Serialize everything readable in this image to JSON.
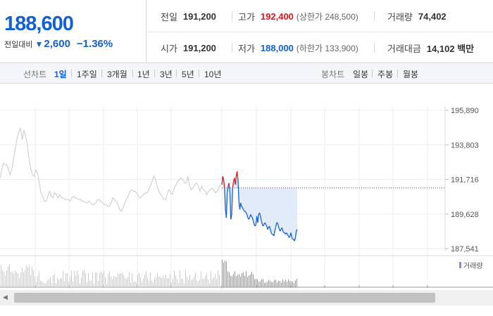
{
  "quote": {
    "price": "188,600",
    "change_label": "전일대비",
    "change_value": "2,600",
    "change_pct": "−1.36%",
    "prev_close_label": "전일",
    "prev_close": "191,200",
    "high_label": "고가",
    "high": "192,400",
    "high_limit": "(상한가 248,500)",
    "volume_label": "거래량",
    "volume": "74,402",
    "open_label": "시가",
    "open": "191,200",
    "low_label": "저가",
    "low": "188,000",
    "low_limit": "(하한가 133,900)",
    "amount_label": "거래대금",
    "amount": "14,102 백만"
  },
  "tabs": {
    "line_label": "선차트",
    "line_items": [
      "1일",
      "1주일",
      "3개월",
      "1년",
      "3년",
      "5년",
      "10년"
    ],
    "active": "1일",
    "candle_label": "봉차트",
    "candle_items": [
      "일봉",
      "주봉",
      "월봉"
    ]
  },
  "colors": {
    "up": "#e0161d",
    "down": "#1160d6",
    "prev_line": "#c9c9c9",
    "fill": "#dde8f8",
    "volume": "#9c86c8"
  },
  "scroll": {
    "left_icon": "scroll-left-arrow-icon"
  },
  "chart_data": {
    "type": "line",
    "title": "",
    "xlabel": "",
    "ylabel": "",
    "ylim": [
      187541,
      195890
    ],
    "yticks": [
      "195,890",
      "193,803",
      "191,716",
      "189,628",
      "187,541"
    ],
    "reference_value": 191200,
    "volume_legend": "거래량",
    "series": [
      {
        "name": "",
        "values": [
          191800,
          192300,
          192700,
          192600,
          192600,
          192300,
          192000,
          192400,
          193000,
          193600,
          194200,
          194600,
          194800,
          194100,
          194700,
          194300,
          193800,
          192900,
          192400,
          192000,
          191900,
          192300,
          192100,
          191500,
          190900,
          190700,
          190400,
          190400,
          190700,
          191000,
          190700,
          190600,
          190900,
          190800,
          190600,
          190800,
          190600,
          190600,
          190500,
          190500,
          190500,
          190400,
          190600,
          190700,
          190600,
          190600,
          190500,
          190500,
          190400,
          190400,
          190300,
          190300,
          190400,
          190300,
          190200,
          190200,
          190300,
          190500,
          190500,
          190400,
          190300,
          190200,
          190200,
          190100,
          190100,
          190300,
          190600,
          190500,
          190400,
          190200,
          189900,
          189800,
          190000,
          190300,
          190500,
          190700,
          191000,
          191100,
          191000,
          191000,
          190900,
          190700,
          190600,
          190700,
          190800,
          190900,
          190900,
          191100,
          191300,
          191600,
          191900,
          191700,
          191300,
          191000,
          190800,
          190700,
          190500,
          190500,
          190900,
          191100,
          190900,
          190800,
          191200,
          191400,
          191600,
          191700,
          191800,
          191700,
          191500,
          191500,
          191900,
          191300,
          191100,
          191200,
          191400,
          191500,
          191300,
          191000,
          191300,
          191100,
          191000,
          190800,
          191000,
          191100,
          191200,
          191100,
          190900,
          191000,
          191200,
          191400
        ]
      },
      {
        "name": "",
        "values": [
          191400,
          191900,
          191700,
          191200,
          189900,
          189400,
          190900,
          191300,
          191500,
          190900,
          189300,
          189600,
          191200,
          191600,
          191800,
          191400,
          191900,
          192200,
          191700,
          190400,
          189900,
          190300,
          190100,
          190000,
          189900,
          189800,
          189800,
          189700,
          189600,
          189400,
          189300,
          189400,
          189600,
          189500,
          189400,
          189200,
          189000,
          188900,
          189000,
          189500,
          189100,
          189600,
          189700,
          189500,
          189200,
          189000,
          188900,
          189000,
          189100,
          189000,
          188900,
          188700,
          188800,
          188900,
          188700,
          188500,
          188400,
          188400,
          188300,
          188600,
          188800,
          189100,
          189100,
          188900,
          188700,
          188600,
          188700,
          188800,
          188600,
          188500,
          188500,
          188400,
          188500,
          188400,
          188300,
          188200,
          188300,
          188500,
          188200,
          188100,
          188100,
          188000,
          188200,
          188600,
          188700
        ]
      }
    ]
  }
}
